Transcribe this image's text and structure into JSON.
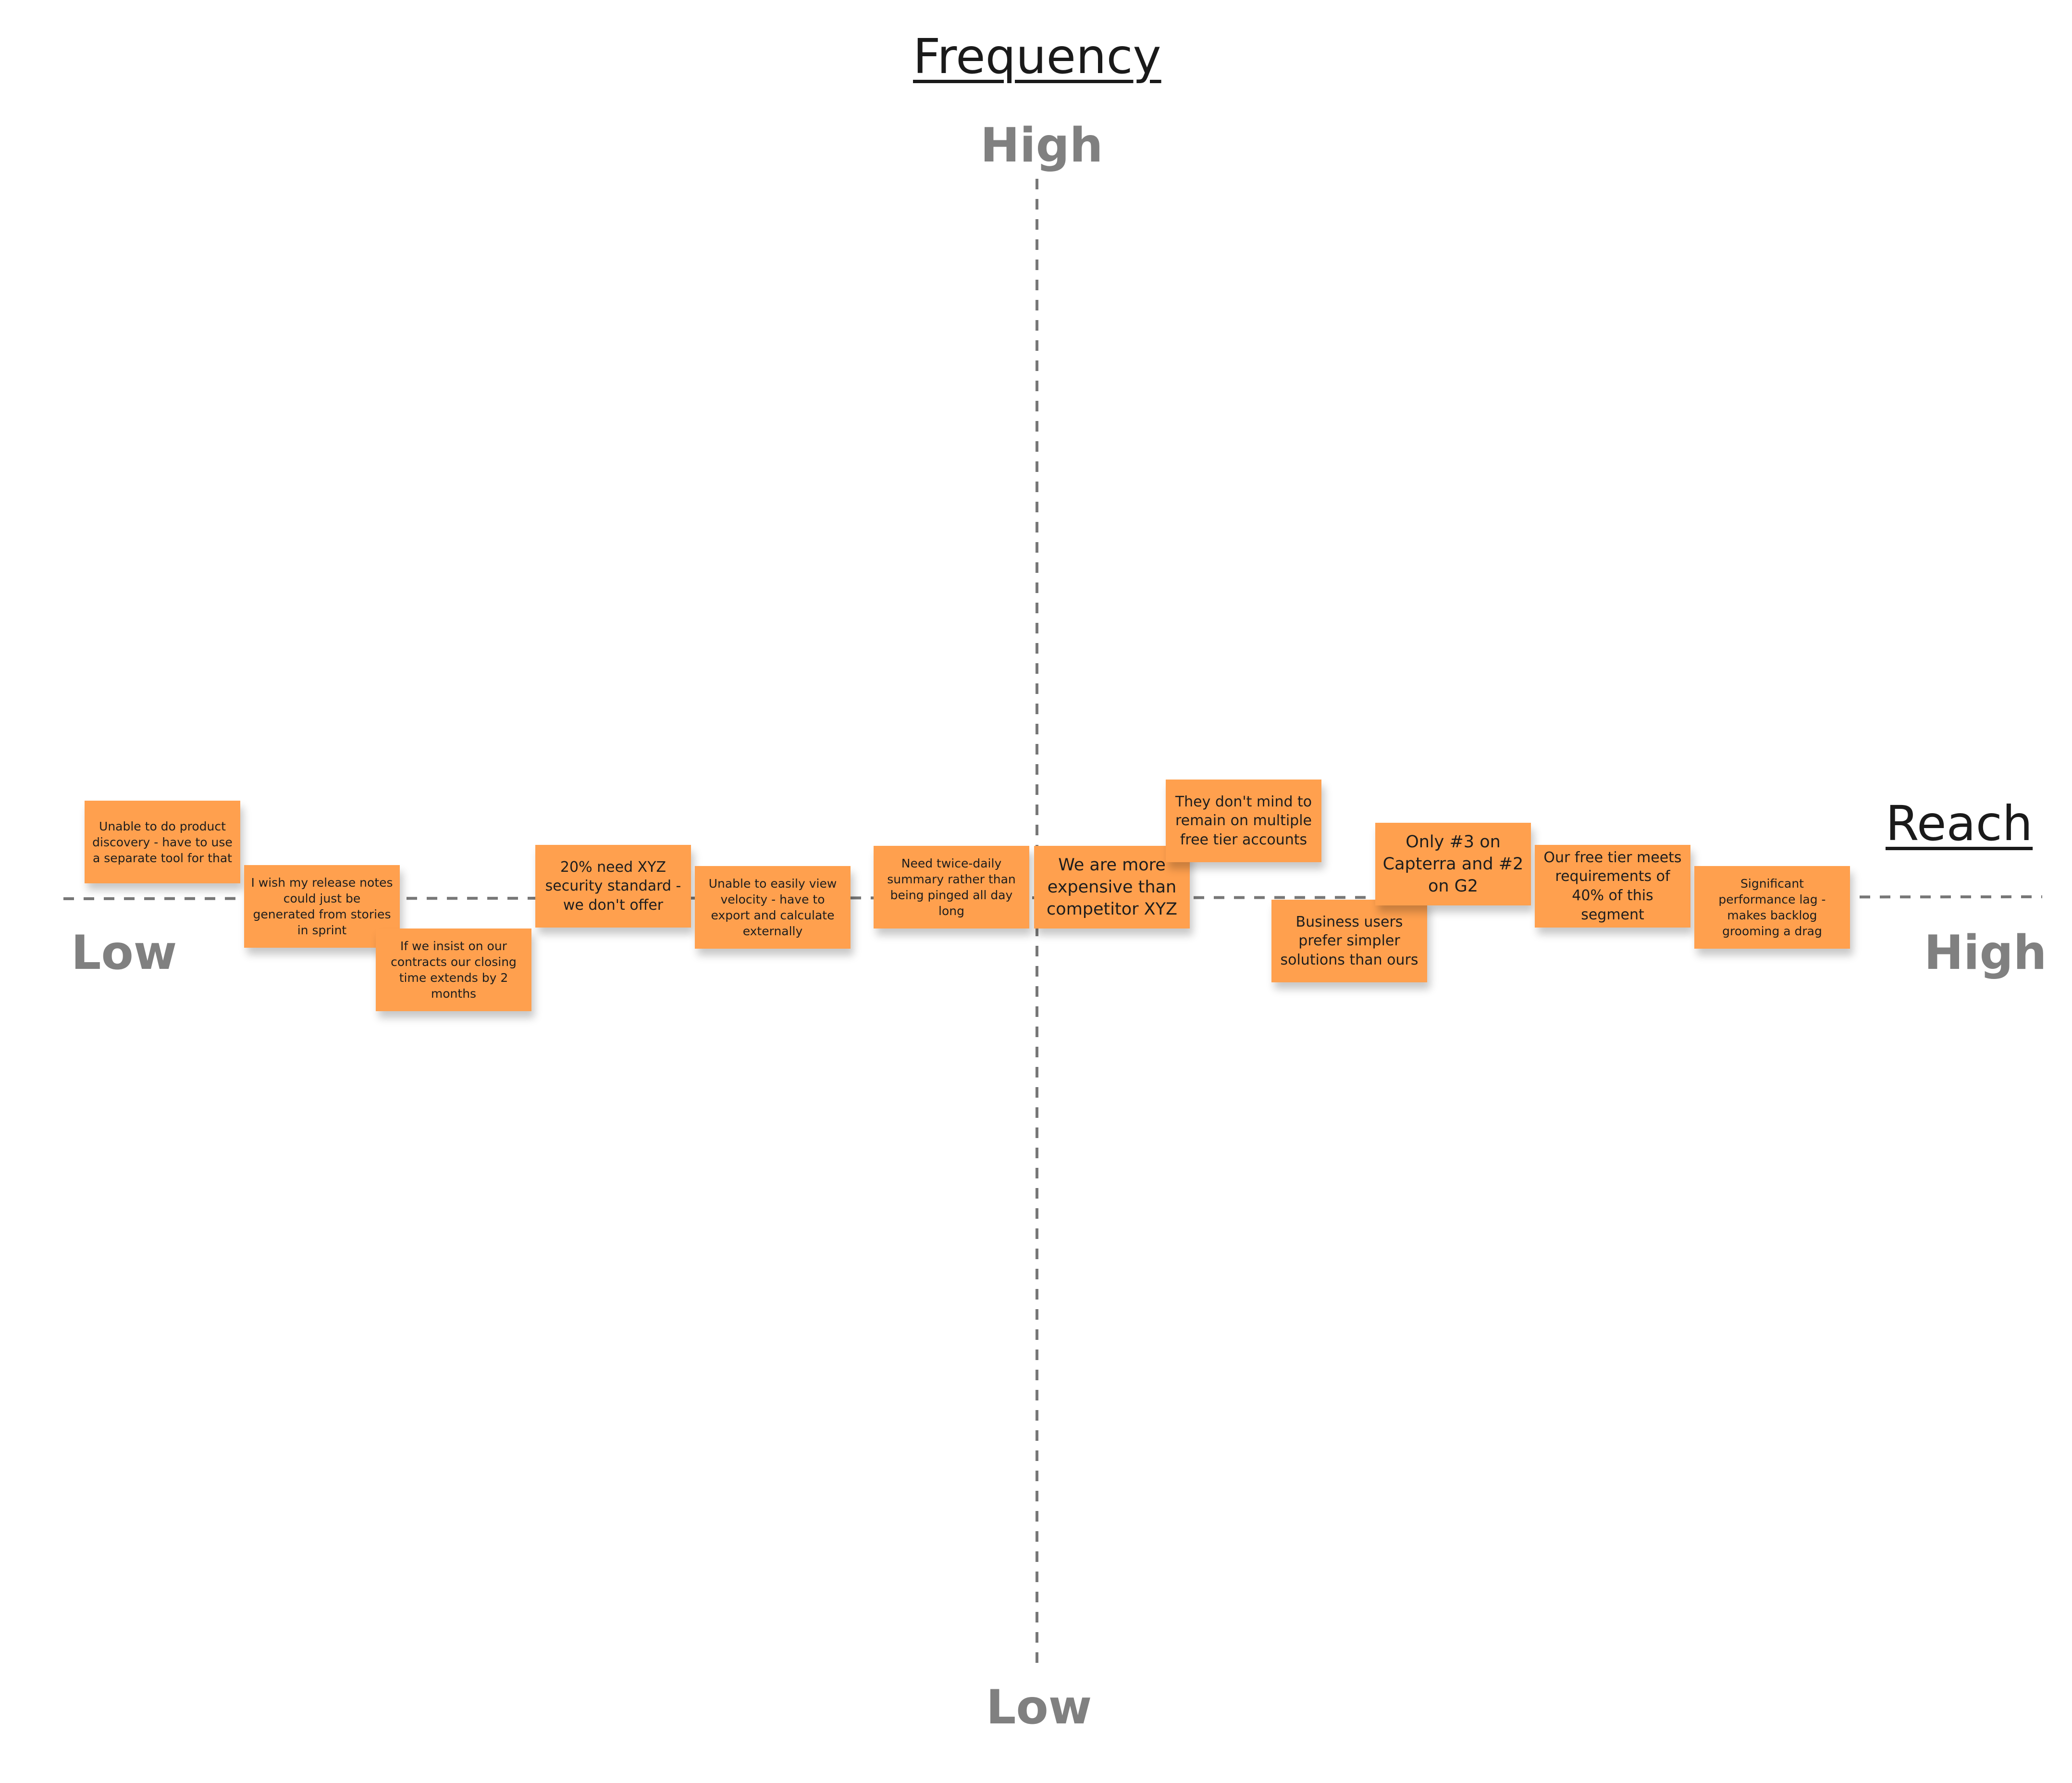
{
  "diagram": {
    "axes": {
      "vertical": {
        "title": "Frequency",
        "high_label": "High",
        "low_label": "Low"
      },
      "horizontal": {
        "title": "Reach",
        "low_label": "Low",
        "high_label": "High"
      }
    },
    "notes": [
      {
        "text": "Unable to do product discovery - have to use a separate tool for that"
      },
      {
        "text": "I wish my release notes could just be generated from stories in sprint"
      },
      {
        "text": "If we insist on our contracts our closing time extends by 2 months"
      },
      {
        "text": "20% need XYZ security standard - we don't offer"
      },
      {
        "text": "Unable to easily view velocity - have to export and calculate externally"
      },
      {
        "text": "Need twice-daily summary rather than being pinged all day long"
      },
      {
        "text": "We are more expensive than competitor XYZ"
      },
      {
        "text": "They don't mind to remain on multiple free tier accounts"
      },
      {
        "text": "Business users prefer simpler solutions than ours"
      },
      {
        "text": "Only #3 on Capterra and #2 on G2"
      },
      {
        "text": "Our free tier meets requirements of 40% of this segment"
      },
      {
        "text": "Significant performance lag - makes backlog grooming a drag"
      }
    ],
    "colors": {
      "note_fill": "#ffa04e",
      "axis_line": "#777777",
      "axis_label": "#808080",
      "title": "#1a1a1a"
    }
  }
}
